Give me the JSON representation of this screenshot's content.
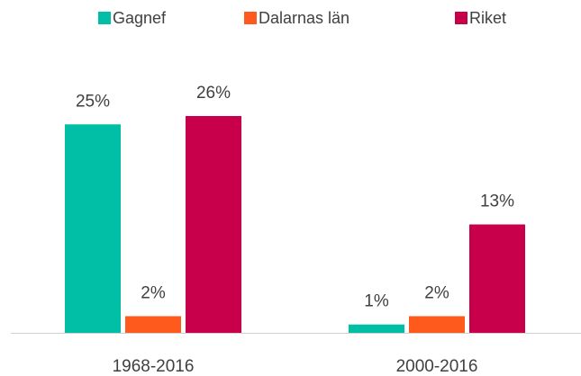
{
  "chart_data": {
    "type": "bar",
    "categories": [
      "1968-2016",
      "2000-2016"
    ],
    "series": [
      {
        "name": "Gagnef",
        "color": "#00bfa6",
        "values": [
          25,
          1
        ],
        "value_labels": [
          "25%",
          "1%"
        ]
      },
      {
        "name": "Dalarnas län",
        "color": "#ff5a1e",
        "values": [
          2,
          2
        ],
        "value_labels": [
          "2%",
          "2%"
        ]
      },
      {
        "name": "Riket",
        "color": "#c8004b",
        "values": [
          26,
          13
        ],
        "value_labels": [
          "26%",
          "13%"
        ]
      }
    ],
    "legend": "top"
  }
}
